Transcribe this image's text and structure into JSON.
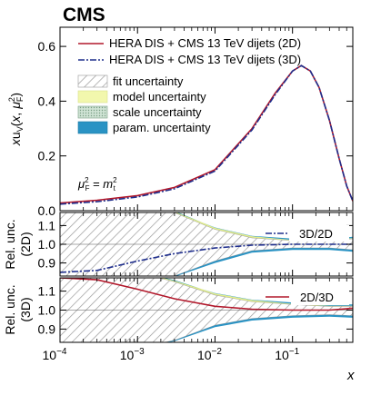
{
  "chart_data": [
    {
      "type": "line",
      "panel": "main",
      "title": "CMS",
      "ylabel": "x u_V(x, μ_F^2)",
      "xscale": "log",
      "xlim": [
        0.0001,
        0.6
      ],
      "ylim": [
        0,
        0.67
      ],
      "yticks": [
        "0.0",
        "0.2",
        "0.4",
        "0.6"
      ],
      "annotation": "μ_F^2 = m_t^2",
      "legend": {
        "placement": "top",
        "series": [
          "HERA DIS + CMS 13 TeV dijets (2D)",
          "HERA DIS + CMS 13 TeV dijets (3D)"
        ],
        "bands": [
          "fit uncertainty",
          "model uncertainty",
          "scale uncertainty",
          "param. uncertainty"
        ]
      },
      "x": [
        0.0001,
        0.0003,
        0.001,
        0.003,
        0.01,
        0.03,
        0.06,
        0.1,
        0.13,
        0.17,
        0.22,
        0.3,
        0.4,
        0.5,
        0.6
      ],
      "series": [
        {
          "name": "HERA DIS + CMS 13 TeV dijets (2D)",
          "color": "#b2182b",
          "style": "solid",
          "values": [
            0.028,
            0.038,
            0.055,
            0.085,
            0.15,
            0.3,
            0.43,
            0.51,
            0.53,
            0.51,
            0.45,
            0.33,
            0.19,
            0.09,
            0.035
          ]
        },
        {
          "name": "HERA DIS + CMS 13 TeV dijets (3D)",
          "color": "#1f2e8c",
          "style": "dashdot",
          "values": [
            0.024,
            0.033,
            0.05,
            0.08,
            0.145,
            0.295,
            0.425,
            0.51,
            0.53,
            0.51,
            0.45,
            0.33,
            0.19,
            0.09,
            0.035
          ]
        }
      ]
    },
    {
      "type": "area",
      "panel": "ratio-2d",
      "ylabel": "Rel. unc. (2D)",
      "ylim": [
        0.83,
        1.17
      ],
      "yticks": [
        "0.9",
        "1.0",
        "1.1"
      ],
      "legend": {
        "placement": "right",
        "series": [
          "3D/2D"
        ]
      },
      "x": [
        0.0001,
        0.0003,
        0.001,
        0.003,
        0.01,
        0.03,
        0.1,
        0.3,
        0.6
      ],
      "fit_band": {
        "upper": [
          1.2,
          1.2,
          1.2,
          1.17,
          1.08,
          1.035,
          1.02,
          1.02,
          1.03
        ],
        "lower": [
          0.8,
          0.8,
          0.8,
          0.83,
          0.91,
          0.965,
          0.98,
          0.98,
          0.97
        ]
      },
      "series": [
        {
          "name": "3D/2D",
          "color": "#1f2e8c",
          "style": "dashdot",
          "values": [
            0.85,
            0.86,
            0.91,
            0.95,
            0.98,
            0.995,
            1.0,
            1.0,
            1.0
          ]
        }
      ]
    },
    {
      "type": "area",
      "panel": "ratio-3d",
      "xlabel": "x",
      "ylabel": "Rel. unc. (3D)",
      "xticks": [
        "10^-4",
        "10^-3",
        "10^-2",
        "10^-1"
      ],
      "ylim": [
        0.83,
        1.17
      ],
      "yticks": [
        "0.9",
        "1.0",
        "1.1"
      ],
      "legend": {
        "placement": "right",
        "series": [
          "2D/3D"
        ]
      },
      "x": [
        0.0001,
        0.0003,
        0.001,
        0.003,
        0.01,
        0.03,
        0.1,
        0.3,
        0.6
      ],
      "fit_band": {
        "upper": [
          1.2,
          1.2,
          1.2,
          1.15,
          1.08,
          1.045,
          1.03,
          1.02,
          1.02
        ],
        "lower": [
          0.8,
          0.8,
          0.8,
          0.84,
          0.92,
          0.955,
          0.97,
          0.975,
          0.97
        ]
      },
      "series": [
        {
          "name": "2D/3D",
          "color": "#b2182b",
          "style": "solid",
          "values": [
            1.17,
            1.16,
            1.11,
            1.06,
            1.02,
            1.005,
            1.0,
            1.0,
            1.01
          ]
        }
      ]
    }
  ]
}
